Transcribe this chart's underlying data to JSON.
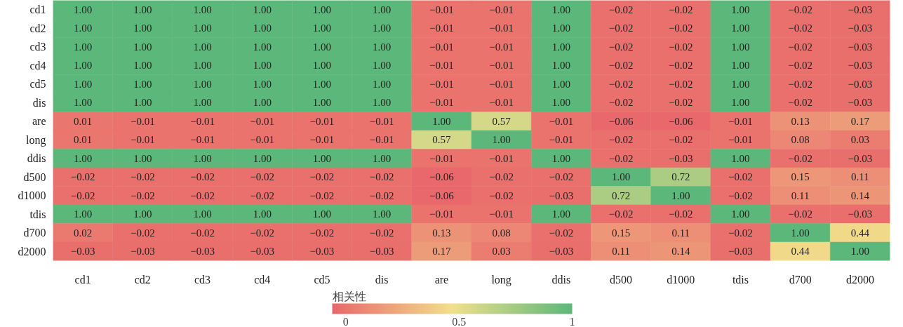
{
  "chart_data": {
    "type": "heatmap",
    "clabel": "相关性",
    "categories": [
      "cd1",
      "cd2",
      "cd3",
      "cd4",
      "cd5",
      "dis",
      "are",
      "long",
      "ddis",
      "d500",
      "d1000",
      "tdis",
      "d700",
      "d2000"
    ],
    "y_categories": [
      "cd1",
      "cd2",
      "cd3",
      "cd4",
      "cd5",
      "dis",
      "are",
      "long",
      "ddis",
      "d500",
      "d1000",
      "tdis",
      "d700",
      "d2000"
    ],
    "cells": [
      [
        1.0,
        1.0,
        1.0,
        1.0,
        1.0,
        1.0,
        -0.01,
        -0.01,
        1.0,
        -0.02,
        -0.02,
        1.0,
        -0.02,
        -0.03
      ],
      [
        1.0,
        1.0,
        1.0,
        1.0,
        1.0,
        1.0,
        -0.01,
        -0.01,
        1.0,
        -0.02,
        -0.02,
        1.0,
        -0.02,
        -0.03
      ],
      [
        1.0,
        1.0,
        1.0,
        1.0,
        1.0,
        1.0,
        -0.01,
        -0.01,
        1.0,
        -0.02,
        -0.02,
        1.0,
        -0.02,
        -0.03
      ],
      [
        1.0,
        1.0,
        1.0,
        1.0,
        1.0,
        1.0,
        -0.01,
        -0.01,
        1.0,
        -0.02,
        -0.02,
        1.0,
        -0.02,
        -0.03
      ],
      [
        1.0,
        1.0,
        1.0,
        1.0,
        1.0,
        1.0,
        -0.01,
        -0.01,
        1.0,
        -0.02,
        -0.02,
        1.0,
        -0.02,
        -0.03
      ],
      [
        1.0,
        1.0,
        1.0,
        1.0,
        1.0,
        1.0,
        -0.01,
        -0.01,
        1.0,
        -0.02,
        -0.02,
        1.0,
        -0.02,
        -0.03
      ],
      [
        0.01,
        -0.01,
        -0.01,
        -0.01,
        -0.01,
        -0.01,
        1.0,
        0.57,
        -0.01,
        -0.06,
        -0.06,
        -0.01,
        0.13,
        0.17
      ],
      [
        0.01,
        -0.01,
        -0.01,
        -0.01,
        -0.01,
        -0.01,
        0.57,
        1.0,
        -0.01,
        -0.02,
        -0.02,
        -0.01,
        0.08,
        0.03
      ],
      [
        1.0,
        1.0,
        1.0,
        1.0,
        1.0,
        1.0,
        -0.01,
        -0.01,
        1.0,
        -0.02,
        -0.03,
        1.0,
        -0.02,
        -0.03
      ],
      [
        -0.02,
        -0.02,
        -0.02,
        -0.02,
        -0.02,
        -0.02,
        -0.06,
        -0.02,
        -0.02,
        1.0,
        0.72,
        -0.02,
        0.15,
        0.11
      ],
      [
        -0.02,
        -0.02,
        -0.02,
        -0.02,
        -0.02,
        -0.02,
        -0.06,
        -0.02,
        -0.03,
        0.72,
        1.0,
        -0.02,
        0.11,
        0.14
      ],
      [
        1.0,
        1.0,
        1.0,
        1.0,
        1.0,
        1.0,
        -0.01,
        -0.01,
        1.0,
        -0.02,
        -0.02,
        1.0,
        -0.02,
        -0.03
      ],
      [
        0.02,
        -0.02,
        -0.02,
        -0.02,
        -0.02,
        -0.02,
        0.13,
        0.08,
        -0.02,
        0.15,
        0.11,
        -0.02,
        1.0,
        0.44
      ],
      [
        -0.03,
        -0.03,
        -0.03,
        -0.03,
        -0.03,
        -0.03,
        0.17,
        0.03,
        -0.03,
        0.11,
        0.14,
        -0.03,
        0.44,
        1.0
      ]
    ],
    "cell_labels": [
      [
        "1.00",
        "1.00",
        "1.00",
        "1.00",
        "1.00",
        "1.00",
        "−0.01",
        "−0.01",
        "1.00",
        "−0.02",
        "−0.02",
        "1.00",
        "−0.02",
        "−0.03"
      ],
      [
        "1.00",
        "1.00",
        "1.00",
        "1.00",
        "1.00",
        "1.00",
        "−0.01",
        "−0.01",
        "1.00",
        "−0.02",
        "−0.02",
        "1.00",
        "−0.02",
        "−0.03"
      ],
      [
        "1.00",
        "1.00",
        "1.00",
        "1.00",
        "1.00",
        "1.00",
        "−0.01",
        "−0.01",
        "1.00",
        "−0.02",
        "−0.02",
        "1.00",
        "−0.02",
        "−0.03"
      ],
      [
        "1.00",
        "1.00",
        "1.00",
        "1.00",
        "1.00",
        "1.00",
        "−0.01",
        "−0.01",
        "1.00",
        "−0.02",
        "−0.02",
        "1.00",
        "−0.02",
        "−0.03"
      ],
      [
        "1.00",
        "1.00",
        "1.00",
        "1.00",
        "1.00",
        "1.00",
        "−0.01",
        "−0.01",
        "1.00",
        "−0.02",
        "−0.02",
        "1.00",
        "−0.02",
        "−0.03"
      ],
      [
        "1.00",
        "1.00",
        "1.00",
        "1.00",
        "1.00",
        "1.00",
        "−0.01",
        "−0.01",
        "1.00",
        "−0.02",
        "−0.02",
        "1.00",
        "−0.02",
        "−0.03"
      ],
      [
        "0.01",
        "−0.01",
        "−0.01",
        "−0.01",
        "−0.01",
        "−0.01",
        "1.00",
        "0.57",
        "−0.01",
        "−0.06",
        "−0.06",
        "−0.01",
        "0.13",
        "0.17"
      ],
      [
        "0.01",
        "−0.01",
        "−0.01",
        "−0.01",
        "−0.01",
        "−0.01",
        "0.57",
        "1.00",
        "−0.01",
        "−0.02",
        "−0.02",
        "−0.01",
        "0.08",
        "0.03"
      ],
      [
        "1.00",
        "1.00",
        "1.00",
        "1.00",
        "1.00",
        "1.00",
        "−0.01",
        "−0.01",
        "1.00",
        "−0.02",
        "−0.03",
        "1.00",
        "−0.02",
        "−0.03"
      ],
      [
        "−0.02",
        "−0.02",
        "−0.02",
        "−0.02",
        "−0.02",
        "−0.02",
        "−0.06",
        "−0.02",
        "−0.02",
        "1.00",
        "0.72",
        "−0.02",
        "0.15",
        "0.11"
      ],
      [
        "−0.02",
        "−0.02",
        "−0.02",
        "−0.02",
        "−0.02",
        "−0.02",
        "−0.06",
        "−0.02",
        "−0.03",
        "0.72",
        "1.00",
        "−0.02",
        "0.11",
        "0.14"
      ],
      [
        "1.00",
        "1.00",
        "1.00",
        "1.00",
        "1.00",
        "1.00",
        "−0.01",
        "−0.01",
        "1.00",
        "−0.02",
        "−0.02",
        "1.00",
        "−0.02",
        "−0.03"
      ],
      [
        "0.02",
        "−0.02",
        "−0.02",
        "−0.02",
        "−0.02",
        "−0.02",
        "0.13",
        "0.08",
        "−0.02",
        "0.15",
        "0.11",
        "−0.02",
        "1.00",
        "0.44"
      ],
      [
        "−0.03",
        "−0.03",
        "−0.03",
        "−0.03",
        "−0.03",
        "−0.03",
        "0.17",
        "0.03",
        "−0.03",
        "0.11",
        "0.14",
        "−0.03",
        "0.44",
        "1.00"
      ]
    ],
    "colors": [
      "#e9686b",
      "#f2e08c",
      "#5cb87a"
    ],
    "clim": [
      -0.06,
      1
    ],
    "cticks": [
      0,
      0.5,
      1
    ]
  }
}
